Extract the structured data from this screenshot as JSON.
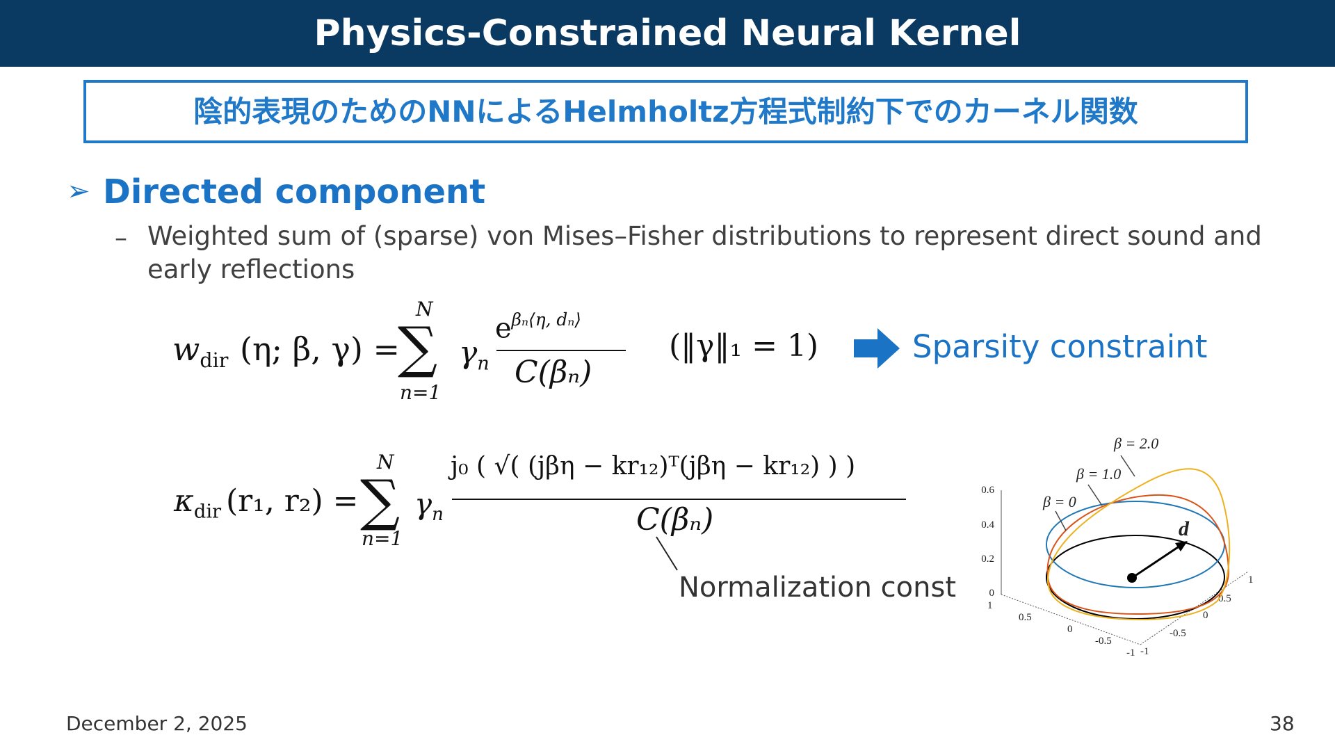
{
  "header": {
    "title": "Physics-Constrained Neural Kernel"
  },
  "subtitle_box": {
    "text": "陰的表現のためのNNによるHelmholtz方程式制約下でのカーネル関数"
  },
  "bullet": {
    "icon": "arrowhead-bullet-icon",
    "title": "Directed component",
    "sub_line1": "Weighted sum of (sparse) von Mises–Fisher distributions to represent direct sound and",
    "sub_line2": "early reflections",
    "dash": "–"
  },
  "eq1": {
    "lhs": "w",
    "lhs_sub": "dir",
    "args": "(η; β, γ) =",
    "sum_top": "N",
    "sum_bottom": "n=1",
    "gamma": "γ",
    "gamma_sub": "n",
    "numer": "e",
    "numer_sup": "βₙ⟨η, dₙ⟩",
    "denom": "C(βₙ)",
    "constraint": "(‖γ‖₁ = 1)"
  },
  "sparsity": {
    "label": "Sparsity constraint",
    "icon": "right-arrow-icon",
    "color": "#1a73c4"
  },
  "eq2": {
    "lhs": "κ",
    "lhs_sub": "dir",
    "args": "(r₁, r₂) =",
    "sum_top": "N",
    "sum_bottom": "n=1",
    "gamma": "γ",
    "gamma_sub": "n",
    "numer": "j₀ ( √( (jβη − kr₁₂)ᵀ(jβη − kr₁₂) ) )",
    "denom": "C(βₙ)"
  },
  "annotation": {
    "label": "Normalization const"
  },
  "figure": {
    "labels": [
      "β = 2.0",
      "β = 1.0",
      "β = 0"
    ],
    "vector_label": "d",
    "z_ticks": [
      "0.6",
      "0.4",
      "0.2",
      "0"
    ],
    "x_ticks": [
      "1",
      "0.5",
      "0",
      "-0.5",
      "-1"
    ],
    "y_ticks": [
      "1",
      "0.5",
      "0",
      "-0.5",
      "-1"
    ],
    "colors": {
      "beta0": "#1f77b4",
      "beta1": "#d95319",
      "beta2": "#edb120",
      "base": "#000000"
    }
  },
  "footer": {
    "date": "December 2, 2025",
    "page": "38"
  }
}
